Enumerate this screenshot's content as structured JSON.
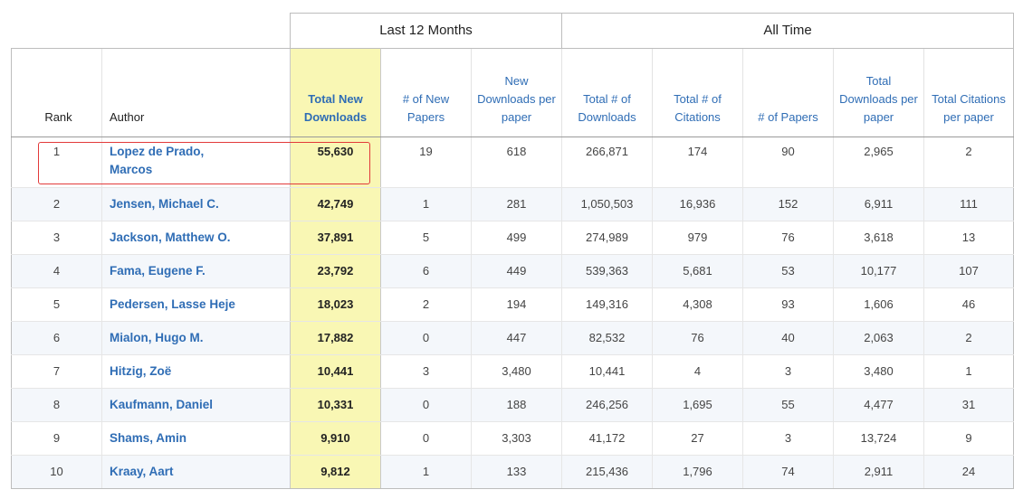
{
  "groups": {
    "last12": "Last 12 Months",
    "alltime": "All Time"
  },
  "columns": {
    "rank": "Rank",
    "author": "Author",
    "total_new_downloads": "Total New Downloads",
    "new_papers": "# of New Papers",
    "new_dl_per_paper": "New Downloads per paper",
    "total_downloads": "Total # of Downloads",
    "total_citations": "Total # of Citations",
    "papers": "# of Papers",
    "total_dl_per_paper": "Total Downloads per paper",
    "total_cit_per_paper": "Total Citations per paper"
  },
  "rows": [
    {
      "rank": "1",
      "author": "Lopez de Prado, Marcos",
      "tnd": "55,630",
      "np": "19",
      "ndpp": "618",
      "td": "266,871",
      "tc": "174",
      "p": "90",
      "tdpp": "2,965",
      "tcpp": "2"
    },
    {
      "rank": "2",
      "author": "Jensen, Michael C.",
      "tnd": "42,749",
      "np": "1",
      "ndpp": "281",
      "td": "1,050,503",
      "tc": "16,936",
      "p": "152",
      "tdpp": "6,911",
      "tcpp": "111"
    },
    {
      "rank": "3",
      "author": "Jackson, Matthew O.",
      "tnd": "37,891",
      "np": "5",
      "ndpp": "499",
      "td": "274,989",
      "tc": "979",
      "p": "76",
      "tdpp": "3,618",
      "tcpp": "13"
    },
    {
      "rank": "4",
      "author": "Fama, Eugene F.",
      "tnd": "23,792",
      "np": "6",
      "ndpp": "449",
      "td": "539,363",
      "tc": "5,681",
      "p": "53",
      "tdpp": "10,177",
      "tcpp": "107"
    },
    {
      "rank": "5",
      "author": "Pedersen, Lasse Heje",
      "tnd": "18,023",
      "np": "2",
      "ndpp": "194",
      "td": "149,316",
      "tc": "4,308",
      "p": "93",
      "tdpp": "1,606",
      "tcpp": "46"
    },
    {
      "rank": "6",
      "author": "Mialon, Hugo M.",
      "tnd": "17,882",
      "np": "0",
      "ndpp": "447",
      "td": "82,532",
      "tc": "76",
      "p": "40",
      "tdpp": "2,063",
      "tcpp": "2"
    },
    {
      "rank": "7",
      "author": "Hitzig, Zoë",
      "tnd": "10,441",
      "np": "3",
      "ndpp": "3,480",
      "td": "10,441",
      "tc": "4",
      "p": "3",
      "tdpp": "3,480",
      "tcpp": "1"
    },
    {
      "rank": "8",
      "author": "Kaufmann, Daniel",
      "tnd": "10,331",
      "np": "0",
      "ndpp": "188",
      "td": "246,256",
      "tc": "1,695",
      "p": "55",
      "tdpp": "4,477",
      "tcpp": "31"
    },
    {
      "rank": "9",
      "author": "Shams, Amin",
      "tnd": "9,910",
      "np": "0",
      "ndpp": "3,303",
      "td": "41,172",
      "tc": "27",
      "p": "3",
      "tdpp": "13,724",
      "tcpp": "9"
    },
    {
      "rank": "10",
      "author": "Kraay, Aart",
      "tnd": "9,812",
      "np": "1",
      "ndpp": "133",
      "td": "215,436",
      "tc": "1,796",
      "p": "74",
      "tdpp": "2,911",
      "tcpp": "24"
    }
  ],
  "colors": {
    "highlight": "#f9f7b4",
    "link": "#2f6db5",
    "annotation": "#e23a3a"
  }
}
